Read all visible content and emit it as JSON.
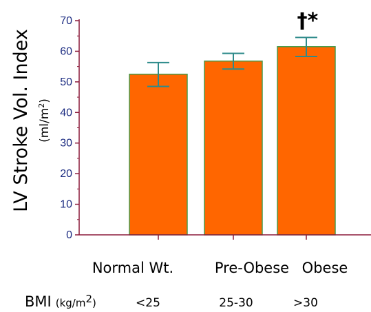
{
  "chart_data": {
    "type": "bar",
    "ylabel": "LV Stroke Vol. Index",
    "ylabel_unit_prefix": "(ml/m",
    "ylabel_unit_sup": "2",
    "ylabel_unit_suffix": ")",
    "ylim": [
      0,
      70
    ],
    "yticks": [
      0,
      10,
      20,
      30,
      40,
      50,
      60,
      70
    ],
    "categories": [
      "Normal Wt.",
      "Pre-Obese",
      "Obese"
    ],
    "values": [
      52.5,
      56.8,
      61.5
    ],
    "error_upper": [
      56.3,
      59.3,
      64.5
    ],
    "error_lower": [
      48.5,
      54.2,
      58.3
    ],
    "annotations": [
      "",
      "",
      "†*"
    ],
    "bmi_title": "BMI",
    "bmi_unit_prefix": "(kg/m",
    "bmi_unit_sup": "2",
    "bmi_unit_suffix": ")",
    "bmi_ranges": [
      "<25",
      "25-30",
      ">30"
    ],
    "grid": false,
    "colors": {
      "bar_fill": "#ff6600",
      "bar_stroke": "#4a9a4a",
      "error_bar": "#2e8b8b",
      "axis": "#8b1a3a",
      "tick_label": "#1a2a80"
    }
  }
}
